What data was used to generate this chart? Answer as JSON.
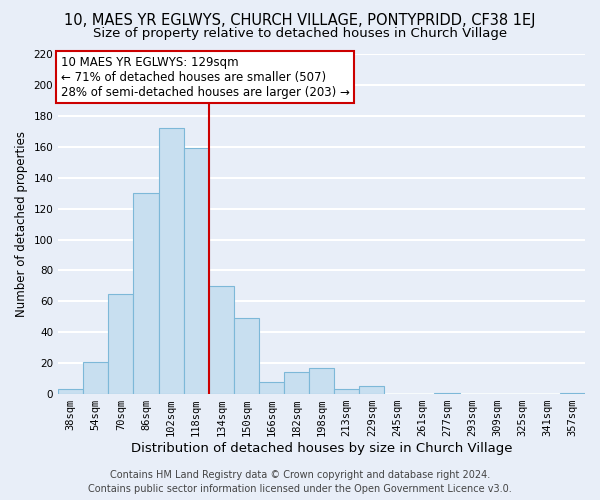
{
  "title": "10, MAES YR EGLWYS, CHURCH VILLAGE, PONTYPRIDD, CF38 1EJ",
  "subtitle": "Size of property relative to detached houses in Church Village",
  "xlabel": "Distribution of detached houses by size in Church Village",
  "ylabel": "Number of detached properties",
  "bar_color": "#c8dff0",
  "bar_edge_color": "#7db8d8",
  "bin_labels": [
    "38sqm",
    "54sqm",
    "70sqm",
    "86sqm",
    "102sqm",
    "118sqm",
    "134sqm",
    "150sqm",
    "166sqm",
    "182sqm",
    "198sqm",
    "213sqm",
    "229sqm",
    "245sqm",
    "261sqm",
    "277sqm",
    "293sqm",
    "309sqm",
    "325sqm",
    "341sqm",
    "357sqm"
  ],
  "bar_heights": [
    3,
    21,
    65,
    130,
    172,
    159,
    70,
    49,
    8,
    14,
    17,
    3,
    5,
    0,
    0,
    1,
    0,
    0,
    0,
    0,
    1
  ],
  "vline_x": 5.5,
  "vline_color": "#cc0000",
  "ylim": [
    0,
    220
  ],
  "yticks": [
    0,
    20,
    40,
    60,
    80,
    100,
    120,
    140,
    160,
    180,
    200,
    220
  ],
  "annotation_line1": "10 MAES YR EGLWYS: 129sqm",
  "annotation_line2": "← 71% of detached houses are smaller (507)",
  "annotation_line3": "28% of semi-detached houses are larger (203) →",
  "footer_line1": "Contains HM Land Registry data © Crown copyright and database right 2024.",
  "footer_line2": "Contains public sector information licensed under the Open Government Licence v3.0.",
  "background_color": "#e8eef8",
  "plot_bg_color": "#e8eef8",
  "grid_color": "#ffffff",
  "title_fontsize": 10.5,
  "subtitle_fontsize": 9.5,
  "xlabel_fontsize": 9.5,
  "ylabel_fontsize": 8.5,
  "tick_fontsize": 7.5,
  "annotation_fontsize": 8.5,
  "footer_fontsize": 7
}
